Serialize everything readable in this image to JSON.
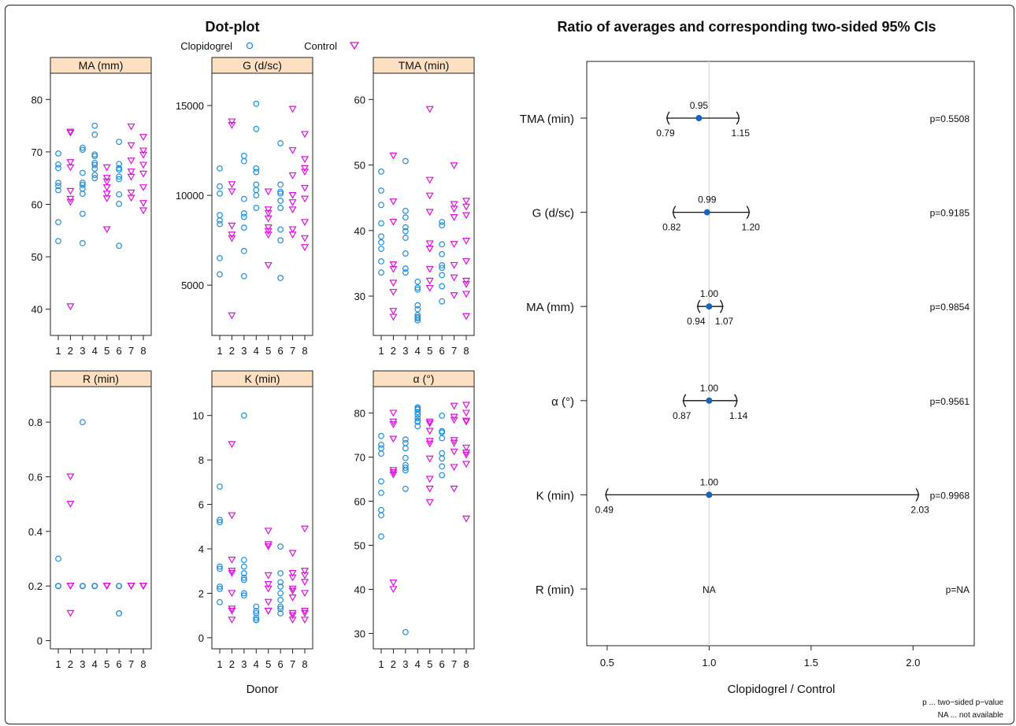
{
  "left_title": "Dot-plot",
  "right_title": "Ratio of averages and corresponding two-sided 95% CIs",
  "legend": {
    "entries": [
      "Clopidogrel",
      "Control"
    ],
    "colors": {
      "Clopidogrel": "#1f8fe0",
      "Control": "#e010e0"
    }
  },
  "dotplot_xlabel": "Donor",
  "ratio_xlabel": "Clopidogrel / Control",
  "notes": [
    "p ... two−sided p−value",
    "NA ... not available"
  ],
  "chart_data": [
    {
      "type": "scatter",
      "panel": "MA (mm)",
      "x_categories": [
        "1",
        "2",
        "3",
        "4",
        "5",
        "6",
        "7",
        "8"
      ],
      "ylim": [
        35,
        85
      ],
      "yticks": [
        40,
        50,
        60,
        70,
        80
      ],
      "series": [
        {
          "name": "Clopidogrel",
          "points": {
            "1": [
              69.7,
              67.6,
              66.9,
              64.1,
              63.5,
              62.7,
              56.6,
              53.0
            ],
            "3": [
              70.8,
              70.4,
              66.0,
              64.1,
              63.7,
              63.0,
              62.0,
              58.2,
              52.6
            ],
            "4": [
              75.0,
              73.3,
              69.5,
              69.2,
              67.9,
              67.5,
              66.8,
              65.6,
              65.0
            ],
            "6": [
              71.9,
              67.7,
              66.9,
              66.6,
              65.3,
              64.8,
              61.9,
              60.1,
              52.1
            ]
          }
        },
        {
          "name": "Control",
          "points": {
            "2": [
              73.8,
              73.6,
              68.0,
              67.0,
              62.5,
              61.0,
              60.4,
              40.5
            ],
            "5": [
              67.0,
              65.0,
              64.3,
              63.2,
              62.0,
              61.1,
              55.2
            ],
            "7": [
              74.8,
              71.2,
              68.3,
              66.2,
              65.2,
              62.2,
              61.2
            ],
            "8": [
              72.8,
              70.2,
              69.4,
              67.5,
              65.8,
              63.2,
              60.2,
              58.8
            ]
          }
        }
      ]
    },
    {
      "type": "scatter",
      "panel": "G (d/sc)",
      "x_categories": [
        "1",
        "2",
        "3",
        "4",
        "5",
        "6",
        "7",
        "8"
      ],
      "ylim": [
        2200,
        16800
      ],
      "yticks": [
        5000,
        10000,
        15000
      ],
      "series": [
        {
          "name": "Clopidogrel",
          "points": {
            "1": [
              11500,
              10500,
              10100,
              8900,
              8600,
              8400,
              6500,
              5600
            ],
            "3": [
              12200,
              11900,
              9800,
              9000,
              8800,
              8200,
              6900,
              5500
            ],
            "4": [
              15100,
              13700,
              11500,
              11300,
              10600,
              10300,
              10000,
              9300
            ],
            "6": [
              12900,
              10600,
              10200,
              10100,
              9700,
              9300,
              8100,
              7500,
              5400
            ]
          }
        },
        {
          "name": "Control",
          "points": {
            "2": [
              14100,
              13900,
              10600,
              10200,
              8300,
              7800,
              7600,
              3300
            ],
            "5": [
              10200,
              9200,
              9000,
              8700,
              8200,
              8000,
              7800,
              6100
            ],
            "7": [
              14800,
              12500,
              11100,
              10000,
              9600,
              9200,
              8100,
              7800
            ],
            "8": [
              13400,
              12000,
              11500,
              11300,
              10400,
              9800,
              8500,
              7600,
              7100
            ]
          }
        }
      ]
    },
    {
      "type": "scatter",
      "panel": "TMA (min)",
      "x_categories": [
        "1",
        "2",
        "3",
        "4",
        "5",
        "6",
        "7",
        "8"
      ],
      "ylim": [
        24,
        64
      ],
      "yticks": [
        30,
        40,
        50,
        60
      ],
      "series": [
        {
          "name": "Clopidogrel",
          "points": {
            "1": [
              49.0,
              46.1,
              43.9,
              41.1,
              39.1,
              38.2,
              37.2,
              35.3,
              33.6
            ],
            "3": [
              50.6,
              43.0,
              42.0,
              40.5,
              39.9,
              38.9,
              36.5,
              34.2,
              33.6
            ],
            "4": [
              32.2,
              31.3,
              31.0,
              28.6,
              28.0,
              27.1,
              26.8,
              26.6,
              26.3
            ],
            "6": [
              41.3,
              40.8,
              37.9,
              36.4,
              34.7,
              34.3,
              33.2,
              31.5,
              29.2
            ]
          }
        },
        {
          "name": "Control",
          "points": {
            "2": [
              51.4,
              44.4,
              41.3,
              34.8,
              34.1,
              32.0,
              30.6,
              27.7,
              26.8
            ],
            "5": [
              58.5,
              47.7,
              45.3,
              42.8,
              38.0,
              37.2,
              34.1,
              32.3,
              31.2
            ],
            "7": [
              49.9,
              44.0,
              43.3,
              42.0,
              37.9,
              34.7,
              32.8,
              30.1
            ],
            "8": [
              44.5,
              43.6,
              42.3,
              38.4,
              35.3,
              32.3,
              31.8,
              30.3,
              26.9
            ]
          }
        }
      ]
    },
    {
      "type": "scatter",
      "panel": "R (min)",
      "x_categories": [
        "1",
        "2",
        "3",
        "4",
        "5",
        "6",
        "7",
        "8"
      ],
      "ylim": [
        -0.03,
        0.93
      ],
      "yticks": [
        0.0,
        0.2,
        0.4,
        0.6,
        0.8
      ],
      "series": [
        {
          "name": "Clopidogrel",
          "points": {
            "1": [
              0.3,
              0.2,
              0.2,
              0.2,
              0.2,
              0.2
            ],
            "3": [
              0.8,
              0.2,
              0.2,
              0.2,
              0.2,
              0.2
            ],
            "4": [
              0.2,
              0.2,
              0.2,
              0.2,
              0.2,
              0.2
            ],
            "6": [
              0.2,
              0.2,
              0.2,
              0.2,
              0.1,
              0.1
            ]
          }
        },
        {
          "name": "Control",
          "points": {
            "2": [
              0.6,
              0.5,
              0.2,
              0.2,
              0.2,
              0.1
            ],
            "5": [
              0.2,
              0.2,
              0.2,
              0.2,
              0.2,
              0.2
            ],
            "7": [
              0.2,
              0.2,
              0.2,
              0.2,
              0.2,
              0.2
            ],
            "8": [
              0.2,
              0.2,
              0.2,
              0.2,
              0.2,
              0.2
            ]
          }
        }
      ]
    },
    {
      "type": "scatter",
      "panel": "K (min)",
      "x_categories": [
        "1",
        "2",
        "3",
        "4",
        "5",
        "6",
        "7",
        "8"
      ],
      "ylim": [
        -0.5,
        11.3
      ],
      "yticks": [
        0,
        2,
        4,
        6,
        8,
        10
      ],
      "series": [
        {
          "name": "Clopidogrel",
          "points": {
            "1": [
              6.8,
              5.3,
              5.2,
              3.2,
              3.1,
              2.3,
              2.2,
              1.6
            ],
            "3": [
              10.0,
              3.5,
              3.2,
              2.9,
              2.7,
              2.6,
              2.0,
              1.9
            ],
            "4": [
              1.4,
              1.2,
              1.1,
              0.9,
              0.8,
              0.8,
              0.8,
              0.8
            ],
            "6": [
              4.1,
              2.9,
              2.5,
              2.3,
              2.0,
              1.7,
              1.4,
              1.3,
              1.1
            ]
          }
        },
        {
          "name": "Control",
          "points": {
            "2": [
              8.7,
              5.5,
              3.5,
              3.0,
              2.9,
              2.0,
              1.3,
              1.2,
              0.8
            ],
            "5": [
              4.8,
              4.2,
              4.1,
              2.8,
              2.4,
              2.2,
              1.6,
              1.2,
              1.2
            ],
            "7": [
              3.8,
              2.9,
              2.7,
              2.2,
              2.1,
              1.8,
              1.1,
              1.0,
              0.8
            ],
            "8": [
              4.9,
              3.0,
              2.8,
              2.5,
              2.0,
              1.2,
              1.1,
              0.8
            ]
          }
        }
      ]
    },
    {
      "type": "scatter",
      "panel": "α (°)",
      "x_categories": [
        "1",
        "2",
        "3",
        "4",
        "5",
        "6",
        "7",
        "8"
      ],
      "ylim": [
        26.5,
        86
      ],
      "yticks": [
        30,
        40,
        50,
        60,
        70,
        80
      ],
      "series": [
        {
          "name": "Clopidogrel",
          "points": {
            "1": [
              74.8,
              72.8,
              72.0,
              70.8,
              64.5,
              61.9,
              58.0,
              56.8,
              52.0
            ],
            "3": [
              74.0,
              73.2,
              72.0,
              69.8,
              68.2,
              67.6,
              67.0,
              62.8,
              30.3
            ],
            "4": [
              81.3,
              81.0,
              80.8,
              80.2,
              79.6,
              78.8,
              78.2,
              78.0,
              77.0
            ],
            "6": [
              79.4,
              75.9,
              75.6,
              74.3,
              70.9,
              69.7,
              67.9,
              65.9
            ]
          }
        },
        {
          "name": "Control",
          "points": {
            "2": [
              80.0,
              78.0,
              77.4,
              74.1,
              67.0,
              66.5,
              66.0,
              41.5,
              40.0
            ],
            "5": [
              78.0,
              77.6,
              75.9,
              73.6,
              73.0,
              69.6,
              65.0,
              62.8,
              59.7
            ],
            "7": [
              81.6,
              79.1,
              78.4,
              73.8,
              73.2,
              71.2,
              67.7,
              62.8
            ],
            "8": [
              81.8,
              80.0,
              78.2,
              78.0,
              72.1,
              71.0,
              70.5,
              68.4,
              56.0
            ]
          }
        }
      ]
    },
    {
      "type": "forest",
      "panel": "ratio",
      "xlim": [
        0.4,
        2.3
      ],
      "xticks": [
        0.5,
        1.0,
        1.5,
        2.0
      ],
      "reference_line": 1.0,
      "rows": [
        {
          "label": "TMA (min)",
          "estimate": 0.95,
          "lower": 0.79,
          "upper": 1.15,
          "est_text": "0.95",
          "low_text": "0.79",
          "up_text": "1.15",
          "p": "p=0.5508"
        },
        {
          "label": "G (d/sc)",
          "estimate": 0.99,
          "lower": 0.82,
          "upper": 1.2,
          "est_text": "0.99",
          "low_text": "0.82",
          "up_text": "1.20",
          "p": "p=0.9185"
        },
        {
          "label": "MA (mm)",
          "estimate": 1.0,
          "lower": 0.94,
          "upper": 1.07,
          "est_text": "1.00",
          "low_text": "0.94",
          "up_text": "1.07",
          "p": "p=0.9854"
        },
        {
          "label": "α (°)",
          "estimate": 1.0,
          "lower": 0.87,
          "upper": 1.14,
          "est_text": "1.00",
          "low_text": "0.87",
          "up_text": "1.14",
          "p": "p=0.9561"
        },
        {
          "label": "K (min)",
          "estimate": 1.0,
          "lower": 0.49,
          "upper": 2.03,
          "est_text": "1.00",
          "low_text": "0.49",
          "up_text": "2.03",
          "p": "p=0.9968"
        },
        {
          "label": "R (min)",
          "estimate": null,
          "lower": null,
          "upper": null,
          "na_text": "NA",
          "p": "p=NA"
        }
      ]
    }
  ]
}
